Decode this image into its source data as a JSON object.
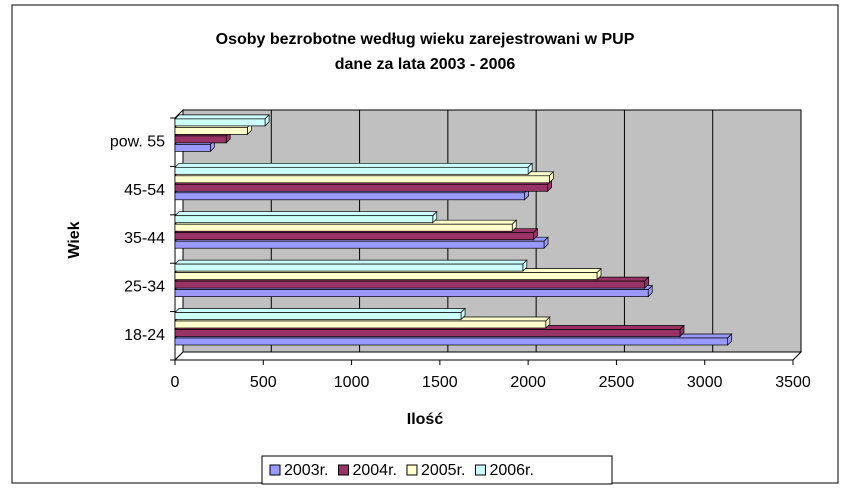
{
  "chart_data": {
    "type": "hbar3d",
    "title": [
      "Osoby bezrobotne według wieku zarejestrowani w PUP",
      "dane za lata 2003 - 2006"
    ],
    "x_label": "Ilość",
    "y_label": "Wiek",
    "categories": [
      "18-24",
      "25-34",
      "35-44",
      "45-54",
      "pow. 55"
    ],
    "series": [
      {
        "name": "2003r.",
        "color": "#9999ff",
        "values": [
          3130,
          2680,
          2090,
          1980,
          200
        ]
      },
      {
        "name": "2004r.",
        "color": "#993366",
        "values": [
          2860,
          2660,
          2030,
          2110,
          290
        ]
      },
      {
        "name": "2005r.",
        "color": "#ffffcc",
        "values": [
          2100,
          2390,
          1910,
          2120,
          410
        ]
      },
      {
        "name": "2006r.",
        "color": "#ccffff",
        "values": [
          1620,
          1970,
          1460,
          2000,
          510
        ]
      }
    ],
    "xlim": [
      0,
      3500
    ],
    "xticks": [
      0,
      500,
      1000,
      1500,
      2000,
      2500,
      3000,
      3500
    ],
    "grid": true,
    "legend": "bottom",
    "wall_color": "#c0c0c0"
  }
}
